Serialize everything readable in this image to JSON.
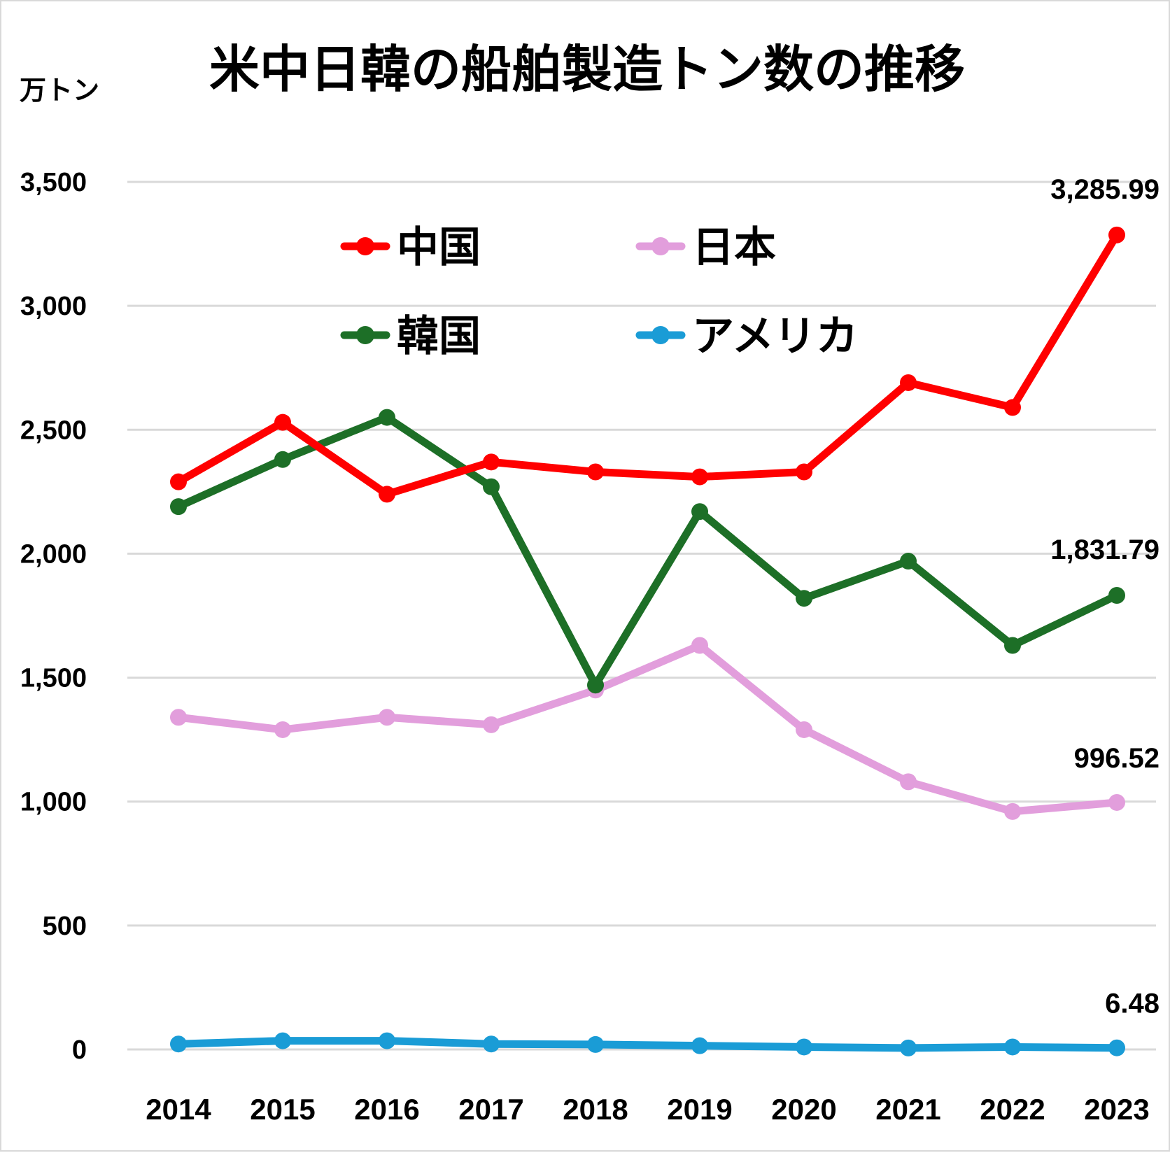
{
  "chart_data": {
    "type": "line",
    "title": "米中日韓の船舶製造トン数の推移",
    "ylabel": "万トン",
    "xlabel": "",
    "categories": [
      "2014",
      "2015",
      "2016",
      "2017",
      "2018",
      "2019",
      "2020",
      "2021",
      "2022",
      "2023"
    ],
    "ylim": [
      0,
      3500
    ],
    "yticks": [
      0,
      500,
      1000,
      1500,
      2000,
      2500,
      3000,
      3500
    ],
    "ytick_labels": [
      "0",
      "500",
      "1,000",
      "1,500",
      "2,000",
      "2,500",
      "3,000",
      "3,500"
    ],
    "grid": true,
    "legend_position": "top-center",
    "series": [
      {
        "name": "中国",
        "color": "#ff0000",
        "values": [
          2290,
          2530,
          2240,
          2370,
          2330,
          2310,
          2330,
          2690,
          2590,
          3285.99
        ],
        "end_label": "3,285.99"
      },
      {
        "name": "日本",
        "color": "#e29edc",
        "values": [
          1340,
          1290,
          1340,
          1310,
          1450,
          1630,
          1290,
          1080,
          960,
          996.52
        ],
        "end_label": "996.52"
      },
      {
        "name": "韓国",
        "color": "#1d6f27",
        "values": [
          2190,
          2380,
          2550,
          2270,
          1470,
          2170,
          1820,
          1970,
          1630,
          1831.79
        ],
        "end_label": "1,831.79"
      },
      {
        "name": "アメリカ",
        "color": "#1a9cd6",
        "values": [
          22,
          35,
          35,
          22,
          20,
          15,
          10,
          6,
          10,
          6.48
        ],
        "end_label": "6.48"
      }
    ]
  }
}
